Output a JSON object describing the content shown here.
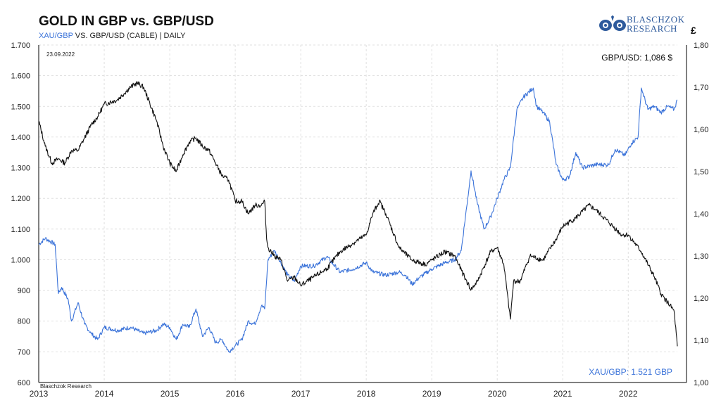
{
  "header": {
    "title": "GOLD IN GBP vs. GBP/USD",
    "subtitle_series1": "XAU/GBP",
    "subtitle_rest": " VS. GBP/USD (CABLE) | DAILY",
    "logo_line1": "BLASCHZOK",
    "logo_line2": "RESEARCH",
    "right_axis_unit": "£"
  },
  "colors": {
    "xau_gbp": "#3b73d9",
    "gbp_usd": "#111111",
    "grid": "#d9d9d9"
  },
  "chart_data": {
    "type": "line",
    "title": "GOLD IN GBP vs. GBP/USD",
    "date_annotation": "23.09.2022",
    "source_note": "Blaschzok Research",
    "label_gbp_usd": "GBP/USD: 1,086 $",
    "label_xau_gbp": "XAU/GBP: 1.521 GBP",
    "x_ticks": [
      "2013",
      "2014",
      "2015",
      "2016",
      "2017",
      "2018",
      "2019",
      "2020",
      "2021",
      "2022"
    ],
    "x_range": [
      2013.0,
      2022.75
    ],
    "y_left": {
      "ylim": [
        600,
        1700
      ],
      "ticks": [
        "600",
        "700",
        "800",
        "900",
        "1.000",
        "1.100",
        "1.200",
        "1.300",
        "1.400",
        "1.500",
        "1.600",
        "1.700"
      ]
    },
    "y_right": {
      "ylim": [
        1.0,
        1.8
      ],
      "ticks": [
        "1,00",
        "1,10",
        "1,20",
        "1,30",
        "1,40",
        "1,50",
        "1,60",
        "1,70",
        "1,80"
      ]
    },
    "grid": true,
    "series": [
      {
        "name": "XAU/GBP",
        "axis": "left",
        "color": "#3b73d9",
        "x": [
          2013.0,
          2013.1,
          2013.25,
          2013.3,
          2013.35,
          2013.45,
          2013.5,
          2013.6,
          2013.7,
          2013.8,
          2013.9,
          2014.0,
          2014.2,
          2014.4,
          2014.6,
          2014.8,
          2014.9,
          2015.0,
          2015.1,
          2015.2,
          2015.3,
          2015.4,
          2015.5,
          2015.6,
          2015.7,
          2015.8,
          2015.9,
          2016.0,
          2016.1,
          2016.2,
          2016.3,
          2016.4,
          2016.45,
          2016.5,
          2016.6,
          2016.8,
          2016.9,
          2017.0,
          2017.2,
          2017.4,
          2017.6,
          2017.8,
          2018.0,
          2018.1,
          2018.3,
          2018.5,
          2018.6,
          2018.7,
          2018.8,
          2019.0,
          2019.2,
          2019.35,
          2019.45,
          2019.55,
          2019.6,
          2019.7,
          2019.8,
          2019.9,
          2020.0,
          2020.1,
          2020.2,
          2020.3,
          2020.4,
          2020.55,
          2020.6,
          2020.7,
          2020.8,
          2020.9,
          2021.0,
          2021.1,
          2021.2,
          2021.3,
          2021.5,
          2021.7,
          2021.8,
          2021.95,
          2022.05,
          2022.15,
          2022.2,
          2022.3,
          2022.4,
          2022.5,
          2022.6,
          2022.7,
          2022.75
        ],
        "values": [
          1050,
          1070,
          1050,
          890,
          910,
          870,
          800,
          860,
          790,
          760,
          740,
          780,
          770,
          780,
          760,
          770,
          790,
          780,
          740,
          790,
          780,
          840,
          750,
          780,
          730,
          740,
          700,
          720,
          740,
          800,
          790,
          850,
          840,
          1000,
          1030,
          950,
          930,
          980,
          980,
          1010,
          960,
          970,
          990,
          960,
          950,
          960,
          950,
          920,
          940,
          970,
          990,
          1000,
          1030,
          1200,
          1290,
          1180,
          1100,
          1140,
          1200,
          1260,
          1300,
          1490,
          1530,
          1560,
          1500,
          1480,
          1450,
          1310,
          1260,
          1270,
          1350,
          1300,
          1310,
          1310,
          1360,
          1340,
          1380,
          1400,
          1560,
          1490,
          1500,
          1480,
          1500,
          1490,
          1521
        ]
      },
      {
        "name": "GBP/USD",
        "axis": "right",
        "color": "#111111",
        "x": [
          2013.0,
          2013.1,
          2013.2,
          2013.3,
          2013.4,
          2013.5,
          2013.6,
          2013.7,
          2013.8,
          2013.9,
          2014.0,
          2014.2,
          2014.4,
          2014.5,
          2014.6,
          2014.8,
          2014.9,
          2015.0,
          2015.1,
          2015.2,
          2015.3,
          2015.4,
          2015.5,
          2015.6,
          2015.7,
          2015.8,
          2015.9,
          2016.0,
          2016.1,
          2016.2,
          2016.3,
          2016.4,
          2016.45,
          2016.48,
          2016.5,
          2016.6,
          2016.7,
          2016.8,
          2016.9,
          2017.0,
          2017.2,
          2017.4,
          2017.6,
          2017.8,
          2018.0,
          2018.1,
          2018.2,
          2018.3,
          2018.5,
          2018.7,
          2018.9,
          2019.0,
          2019.2,
          2019.35,
          2019.5,
          2019.6,
          2019.7,
          2019.9,
          2020.0,
          2020.1,
          2020.2,
          2020.25,
          2020.35,
          2020.5,
          2020.7,
          2020.9,
          2021.0,
          2021.2,
          2021.4,
          2021.5,
          2021.7,
          2021.9,
          2022.0,
          2022.2,
          2022.4,
          2022.5,
          2022.6,
          2022.7,
          2022.75
        ],
        "values": [
          1.62,
          1.56,
          1.52,
          1.53,
          1.52,
          1.55,
          1.55,
          1.58,
          1.61,
          1.63,
          1.66,
          1.67,
          1.7,
          1.71,
          1.7,
          1.62,
          1.56,
          1.52,
          1.5,
          1.54,
          1.57,
          1.58,
          1.56,
          1.55,
          1.52,
          1.49,
          1.48,
          1.43,
          1.43,
          1.4,
          1.42,
          1.42,
          1.43,
          1.34,
          1.32,
          1.3,
          1.29,
          1.24,
          1.25,
          1.23,
          1.25,
          1.27,
          1.31,
          1.33,
          1.35,
          1.4,
          1.43,
          1.4,
          1.32,
          1.29,
          1.28,
          1.29,
          1.31,
          1.3,
          1.25,
          1.22,
          1.24,
          1.31,
          1.32,
          1.28,
          1.15,
          1.24,
          1.24,
          1.3,
          1.29,
          1.34,
          1.37,
          1.39,
          1.42,
          1.41,
          1.38,
          1.35,
          1.35,
          1.31,
          1.25,
          1.21,
          1.19,
          1.17,
          1.086
        ]
      }
    ]
  }
}
